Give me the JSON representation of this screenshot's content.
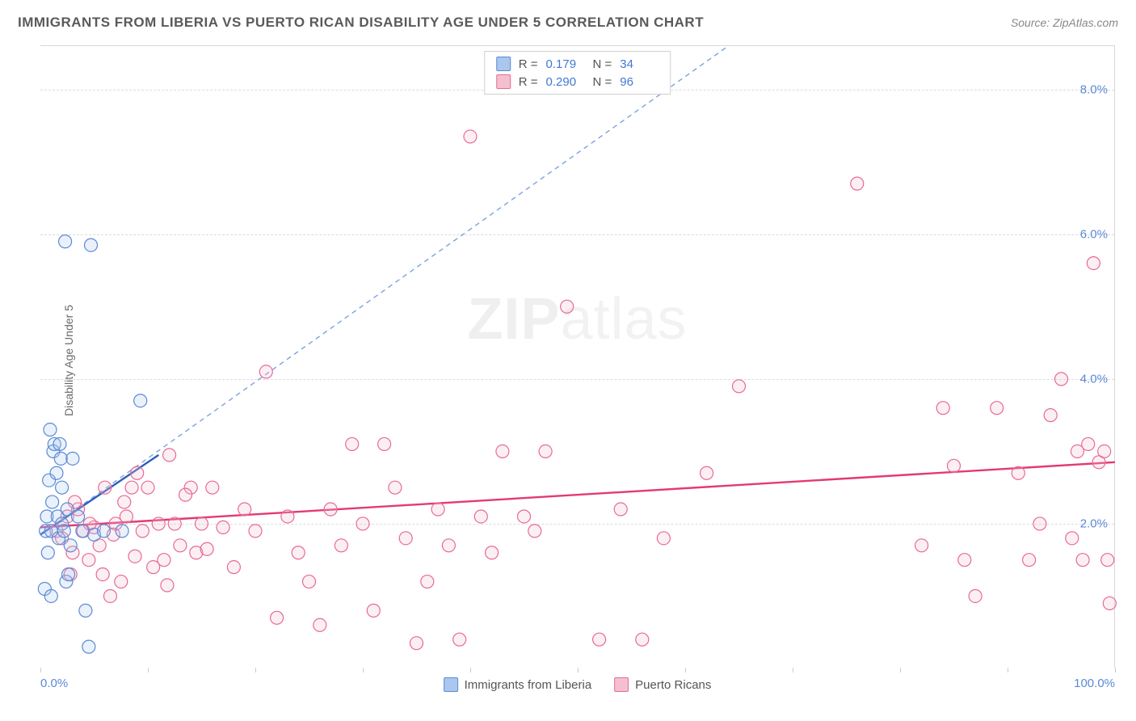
{
  "header": {
    "title": "IMMIGRANTS FROM LIBERIA VS PUERTO RICAN DISABILITY AGE UNDER 5 CORRELATION CHART",
    "source_prefix": "Source: ",
    "source_name": "ZipAtlas.com"
  },
  "watermark": {
    "bold": "ZIP",
    "rest": "atlas"
  },
  "chart": {
    "type": "scatter",
    "y_axis_label": "Disability Age Under 5",
    "xlim": [
      0,
      100
    ],
    "ylim": [
      0,
      8.6
    ],
    "x_ticks": [
      0,
      10,
      20,
      30,
      40,
      50,
      60,
      70,
      80,
      90,
      100
    ],
    "x_tick_labels_shown": {
      "0": "0.0%",
      "100": "100.0%"
    },
    "y_ticks": [
      2.0,
      4.0,
      6.0,
      8.0
    ],
    "y_tick_labels": [
      "2.0%",
      "4.0%",
      "6.0%",
      "8.0%"
    ],
    "grid_color": "#dcdcdc",
    "background_color": "#ffffff",
    "marker_radius": 8,
    "marker_stroke_width": 1.2,
    "marker_fill_opacity": 0.25,
    "series": [
      {
        "name": "Immigrants from Liberia",
        "color_fill": "#a9c7ef",
        "color_stroke": "#5b89d6",
        "R": "0.179",
        "N": "34",
        "trend_solid": {
          "x1": 0,
          "y1": 1.85,
          "x2": 11,
          "y2": 2.95,
          "color": "#2b5fbf",
          "width": 2.4
        },
        "trend_dashed": {
          "x1": 0,
          "y1": 1.85,
          "x2": 64,
          "y2": 8.6,
          "color": "#7ba3de",
          "dash": "6 5",
          "width": 1.4
        },
        "points": [
          [
            0.4,
            1.1
          ],
          [
            0.5,
            1.9
          ],
          [
            0.6,
            2.1
          ],
          [
            0.7,
            1.6
          ],
          [
            0.8,
            2.6
          ],
          [
            0.9,
            3.3
          ],
          [
            1.0,
            1.0
          ],
          [
            1.0,
            1.9
          ],
          [
            1.1,
            2.3
          ],
          [
            1.2,
            3.0
          ],
          [
            1.3,
            3.1
          ],
          [
            1.5,
            2.7
          ],
          [
            1.6,
            2.1
          ],
          [
            1.7,
            1.8
          ],
          [
            1.8,
            3.1
          ],
          [
            1.9,
            2.9
          ],
          [
            2.0,
            2.0
          ],
          [
            2.0,
            2.5
          ],
          [
            2.2,
            1.9
          ],
          [
            2.4,
            1.2
          ],
          [
            2.5,
            2.2
          ],
          [
            2.6,
            1.3
          ],
          [
            2.8,
            1.7
          ],
          [
            3.0,
            2.9
          ],
          [
            3.5,
            2.1
          ],
          [
            3.9,
            1.9
          ],
          [
            4.2,
            0.8
          ],
          [
            4.5,
            0.3
          ],
          [
            5.0,
            1.85
          ],
          [
            5.9,
            1.9
          ],
          [
            2.3,
            5.9
          ],
          [
            4.7,
            5.85
          ],
          [
            9.3,
            3.7
          ],
          [
            7.6,
            1.9
          ]
        ]
      },
      {
        "name": "Puerto Ricans",
        "color_fill": "#f4c0cf",
        "color_stroke": "#e76a94",
        "R": "0.290",
        "N": "96",
        "trend_solid": {
          "x1": 0,
          "y1": 1.95,
          "x2": 100,
          "y2": 2.85,
          "color": "#e33a74",
          "width": 2.4
        },
        "points": [
          [
            1.5,
            1.9
          ],
          [
            2.0,
            1.8
          ],
          [
            2.5,
            2.1
          ],
          [
            3.0,
            1.6
          ],
          [
            3.5,
            2.2
          ],
          [
            4.0,
            1.9
          ],
          [
            4.5,
            1.5
          ],
          [
            5.0,
            1.95
          ],
          [
            5.5,
            1.7
          ],
          [
            6.0,
            2.5
          ],
          [
            6.5,
            1.0
          ],
          [
            7.0,
            2.0
          ],
          [
            7.5,
            1.2
          ],
          [
            8.0,
            2.1
          ],
          [
            8.5,
            2.5
          ],
          [
            9.0,
            2.7
          ],
          [
            9.5,
            1.9
          ],
          [
            10.0,
            2.5
          ],
          [
            10.5,
            1.4
          ],
          [
            11.0,
            2.0
          ],
          [
            11.5,
            1.5
          ],
          [
            12.0,
            2.95
          ],
          [
            12.5,
            2.0
          ],
          [
            13.0,
            1.7
          ],
          [
            14.0,
            2.5
          ],
          [
            14.5,
            1.6
          ],
          [
            15.0,
            2.0
          ],
          [
            16.0,
            2.5
          ],
          [
            17.0,
            1.95
          ],
          [
            18.0,
            1.4
          ],
          [
            19.0,
            2.2
          ],
          [
            20.0,
            1.9
          ],
          [
            21.0,
            4.1
          ],
          [
            22.0,
            0.7
          ],
          [
            23.0,
            2.1
          ],
          [
            24.0,
            1.6
          ],
          [
            25.0,
            1.2
          ],
          [
            26.0,
            0.6
          ],
          [
            27.0,
            2.2
          ],
          [
            28.0,
            1.7
          ],
          [
            29.0,
            3.1
          ],
          [
            30.0,
            2.0
          ],
          [
            31.0,
            0.8
          ],
          [
            32.0,
            3.1
          ],
          [
            33.0,
            2.5
          ],
          [
            34.0,
            1.8
          ],
          [
            35.0,
            0.35
          ],
          [
            36.0,
            1.2
          ],
          [
            37.0,
            2.2
          ],
          [
            38.0,
            1.7
          ],
          [
            39.0,
            0.4
          ],
          [
            40.0,
            7.35
          ],
          [
            41.0,
            2.1
          ],
          [
            42.0,
            1.6
          ],
          [
            43.0,
            3.0
          ],
          [
            45.0,
            2.1
          ],
          [
            46.0,
            1.9
          ],
          [
            47.0,
            3.0
          ],
          [
            49.0,
            5.0
          ],
          [
            52.0,
            0.4
          ],
          [
            54.0,
            2.2
          ],
          [
            56.0,
            0.4
          ],
          [
            58.0,
            1.8
          ],
          [
            62.0,
            2.7
          ],
          [
            65.0,
            3.9
          ],
          [
            76.0,
            6.7
          ],
          [
            82.0,
            1.7
          ],
          [
            84.0,
            3.6
          ],
          [
            85.0,
            2.8
          ],
          [
            86.0,
            1.5
          ],
          [
            87.0,
            1.0
          ],
          [
            89.0,
            3.6
          ],
          [
            91.0,
            2.7
          ],
          [
            92.0,
            1.5
          ],
          [
            93.0,
            2.0
          ],
          [
            94.0,
            3.5
          ],
          [
            95.0,
            4.0
          ],
          [
            96.0,
            1.8
          ],
          [
            96.5,
            3.0
          ],
          [
            97.0,
            1.5
          ],
          [
            97.5,
            3.1
          ],
          [
            98.0,
            5.6
          ],
          [
            98.5,
            2.85
          ],
          [
            99.0,
            3.0
          ],
          [
            99.3,
            1.5
          ],
          [
            99.5,
            0.9
          ],
          [
            2.8,
            1.3
          ],
          [
            3.2,
            2.3
          ],
          [
            4.6,
            2.0
          ],
          [
            5.8,
            1.3
          ],
          [
            6.8,
            1.85
          ],
          [
            7.8,
            2.3
          ],
          [
            8.8,
            1.55
          ],
          [
            11.8,
            1.15
          ],
          [
            13.5,
            2.4
          ],
          [
            15.5,
            1.65
          ]
        ]
      }
    ],
    "legend_bottom": [
      {
        "swatch": "#a9c7ef",
        "stroke": "#5b89d6",
        "label": "Immigrants from Liberia"
      },
      {
        "swatch": "#f4c0cf",
        "stroke": "#e76a94",
        "label": "Puerto Ricans"
      }
    ]
  }
}
